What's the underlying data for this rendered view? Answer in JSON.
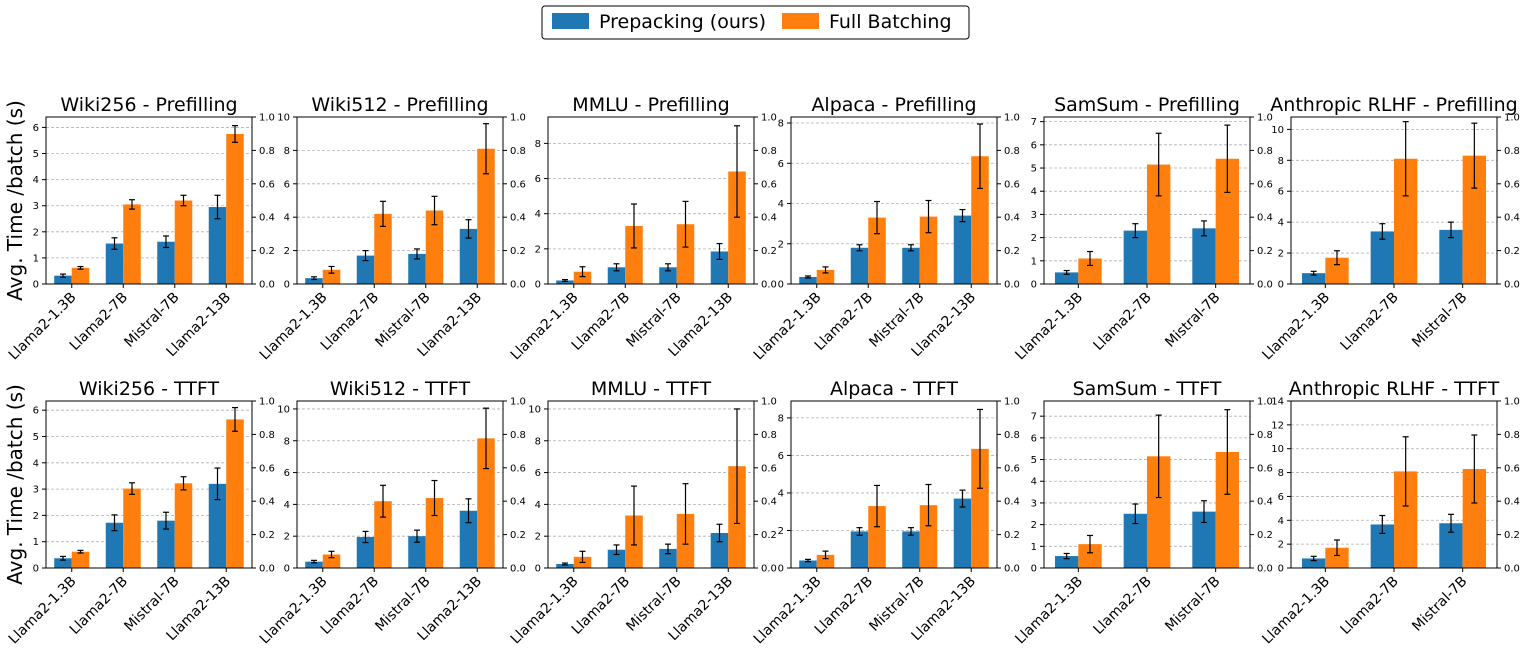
{
  "ylabel": "Avg. Time /batch (s)",
  "legend": {
    "placement": "top-center",
    "entries": [
      {
        "label": "Prepacking (ours)",
        "color": "#1f77b4"
      },
      {
        "label": "Full Batching",
        "color": "#ff7f0e"
      }
    ]
  },
  "colors": {
    "prepacking": "#1f77b4",
    "full_batching": "#ff7f0e",
    "grid": "#b0b0b0",
    "errorbar": "#000000"
  },
  "right_axis": {
    "ylim": [
      0,
      1
    ],
    "ticks": [
      "0.0",
      "0.2",
      "0.4",
      "0.6",
      "0.8",
      "1.0"
    ]
  },
  "chart_data": [
    {
      "type": "bar",
      "title": "Wiki256 - Prefilling",
      "categories": [
        "Llama2-1.3B",
        "Llama2-7B",
        "Mistral-7B",
        "Llama2-13B"
      ],
      "ylim": [
        0,
        6.4
      ],
      "yticks": [
        0,
        1,
        2,
        3,
        4,
        5,
        6
      ],
      "grid": true,
      "series": [
        {
          "name": "Prepacking (ours)",
          "values": [
            0.32,
            1.55,
            1.62,
            2.95
          ],
          "errors": [
            0.06,
            0.22,
            0.22,
            0.45
          ]
        },
        {
          "name": "Full Batching",
          "values": [
            0.62,
            3.05,
            3.2,
            5.75
          ],
          "errors": [
            0.05,
            0.18,
            0.2,
            0.32
          ]
        }
      ]
    },
    {
      "type": "bar",
      "title": "Wiki512 - Prefilling",
      "categories": [
        "Llama2-1.3B",
        "Llama2-7B",
        "Mistral-7B",
        "Llama2-13B"
      ],
      "ylim": [
        0,
        10
      ],
      "yticks": [
        0,
        2,
        4,
        6,
        8,
        10
      ],
      "grid": true,
      "series": [
        {
          "name": "Prepacking (ours)",
          "values": [
            0.35,
            1.7,
            1.8,
            3.3
          ],
          "errors": [
            0.08,
            0.3,
            0.3,
            0.55
          ]
        },
        {
          "name": "Full Batching",
          "values": [
            0.85,
            4.2,
            4.4,
            8.1
          ],
          "errors": [
            0.2,
            0.75,
            0.85,
            1.5
          ]
        }
      ]
    },
    {
      "type": "bar",
      "title": "MMLU - Prefilling",
      "categories": [
        "Llama2-1.3B",
        "Llama2-7B",
        "Mistral-7B",
        "Llama2-13B"
      ],
      "ylim": [
        0,
        9.5
      ],
      "yticks": [
        0,
        2,
        4,
        6,
        8
      ],
      "grid": true,
      "series": [
        {
          "name": "Prepacking (ours)",
          "values": [
            0.2,
            0.95,
            0.95,
            1.85
          ],
          "errors": [
            0.05,
            0.2,
            0.2,
            0.45
          ]
        },
        {
          "name": "Full Batching",
          "values": [
            0.7,
            3.3,
            3.4,
            6.4
          ],
          "errors": [
            0.28,
            1.25,
            1.3,
            2.6
          ]
        }
      ]
    },
    {
      "type": "bar",
      "title": "Alpaca - Prefilling",
      "categories": [
        "Llama2-1.3B",
        "Llama2-7B",
        "Mistral-7B",
        "Llama2-13B"
      ],
      "ylim": [
        0,
        8.3
      ],
      "yticks": [
        0,
        2,
        4,
        6,
        8
      ],
      "grid": true,
      "series": [
        {
          "name": "Prepacking (ours)",
          "values": [
            0.35,
            1.8,
            1.8,
            3.4
          ],
          "errors": [
            0.05,
            0.15,
            0.15,
            0.3
          ]
        },
        {
          "name": "Full Batching",
          "values": [
            0.7,
            3.3,
            3.35,
            6.35
          ],
          "errors": [
            0.15,
            0.8,
            0.8,
            1.6
          ]
        }
      ]
    },
    {
      "type": "bar",
      "title": "SamSum - Prefilling",
      "categories": [
        "Llama2-1.3B",
        "Llama2-7B",
        "Mistral-7B"
      ],
      "ylim": [
        0,
        7.2
      ],
      "yticks": [
        0,
        1,
        2,
        3,
        4,
        5,
        6,
        7
      ],
      "grid": true,
      "series": [
        {
          "name": "Prepacking (ours)",
          "values": [
            0.5,
            2.3,
            2.4
          ],
          "errors": [
            0.08,
            0.3,
            0.32
          ]
        },
        {
          "name": "Full Batching",
          "values": [
            1.1,
            5.15,
            5.4
          ],
          "errors": [
            0.3,
            1.35,
            1.45
          ]
        }
      ]
    },
    {
      "type": "bar",
      "title": "Anthropic RLHF - Prefilling",
      "categories": [
        "Llama2-1.3B",
        "Llama2-7B",
        "Mistral-7B"
      ],
      "ylim": [
        0,
        10.8
      ],
      "yticks": [
        0,
        2,
        4,
        6,
        8,
        10
      ],
      "grid": true,
      "series": [
        {
          "name": "Prepacking (ours)",
          "values": [
            0.7,
            3.4,
            3.5
          ],
          "errors": [
            0.12,
            0.5,
            0.5
          ]
        },
        {
          "name": "Full Batching",
          "values": [
            1.7,
            8.1,
            8.3
          ],
          "errors": [
            0.45,
            2.4,
            2.1
          ]
        }
      ]
    },
    {
      "type": "bar",
      "title": "Wiki256 - TTFT",
      "categories": [
        "Llama2-1.3B",
        "Llama2-7B",
        "Mistral-7B",
        "Llama2-13B"
      ],
      "ylim": [
        0,
        6.35
      ],
      "yticks": [
        0,
        1,
        2,
        3,
        4,
        5,
        6
      ],
      "grid": true,
      "series": [
        {
          "name": "Prepacking (ours)",
          "values": [
            0.37,
            1.72,
            1.8,
            3.2
          ],
          "errors": [
            0.07,
            0.3,
            0.32,
            0.6
          ]
        },
        {
          "name": "Full Batching",
          "values": [
            0.62,
            3.02,
            3.22,
            5.65
          ],
          "errors": [
            0.05,
            0.22,
            0.25,
            0.45
          ]
        }
      ]
    },
    {
      "type": "bar",
      "title": "Wiki512 - TTFT",
      "categories": [
        "Llama2-1.3B",
        "Llama2-7B",
        "Mistral-7B",
        "Llama2-13B"
      ],
      "ylim": [
        0,
        10.5
      ],
      "yticks": [
        0,
        2,
        4,
        6,
        8,
        10
      ],
      "grid": true,
      "series": [
        {
          "name": "Prepacking (ours)",
          "values": [
            0.4,
            1.95,
            2.0,
            3.6
          ],
          "errors": [
            0.08,
            0.35,
            0.38,
            0.75
          ]
        },
        {
          "name": "Full Batching",
          "values": [
            0.85,
            4.2,
            4.4,
            8.15
          ],
          "errors": [
            0.2,
            1.0,
            1.1,
            1.9
          ]
        }
      ]
    },
    {
      "type": "bar",
      "title": "MMLU - TTFT",
      "categories": [
        "Llama2-1.3B",
        "Llama2-7B",
        "Mistral-7B",
        "Llama2-13B"
      ],
      "ylim": [
        0,
        10.5
      ],
      "yticks": [
        0,
        2,
        4,
        6,
        8,
        10
      ],
      "grid": true,
      "series": [
        {
          "name": "Prepacking (ours)",
          "values": [
            0.25,
            1.15,
            1.2,
            2.2
          ],
          "errors": [
            0.06,
            0.3,
            0.3,
            0.55
          ]
        },
        {
          "name": "Full Batching",
          "values": [
            0.7,
            3.3,
            3.4,
            6.4
          ],
          "errors": [
            0.35,
            1.85,
            1.9,
            3.6
          ]
        }
      ]
    },
    {
      "type": "bar",
      "title": "Alpaca - TTFT",
      "categories": [
        "Llama2-1.3B",
        "Llama2-7B",
        "Mistral-7B",
        "Llama2-13B"
      ],
      "ylim": [
        0,
        8.9
      ],
      "yticks": [
        0,
        2,
        4,
        6,
        8
      ],
      "grid": true,
      "series": [
        {
          "name": "Prepacking (ours)",
          "values": [
            0.4,
            1.95,
            1.95,
            3.7
          ],
          "errors": [
            0.06,
            0.2,
            0.2,
            0.45
          ]
        },
        {
          "name": "Full Batching",
          "values": [
            0.7,
            3.3,
            3.35,
            6.35
          ],
          "errors": [
            0.2,
            1.1,
            1.1,
            2.1
          ]
        }
      ]
    },
    {
      "type": "bar",
      "title": "SamSum - TTFT",
      "categories": [
        "Llama2-1.3B",
        "Llama2-7B",
        "Mistral-7B"
      ],
      "ylim": [
        0,
        7.7
      ],
      "yticks": [
        0,
        1,
        2,
        3,
        4,
        5,
        6,
        7
      ],
      "grid": true,
      "series": [
        {
          "name": "Prepacking (ours)",
          "values": [
            0.55,
            2.5,
            2.6
          ],
          "errors": [
            0.12,
            0.45,
            0.5
          ]
        },
        {
          "name": "Full Batching",
          "values": [
            1.1,
            5.15,
            5.35
          ],
          "errors": [
            0.4,
            1.9,
            1.95
          ]
        }
      ]
    },
    {
      "type": "bar",
      "title": "Anthropic RLHF - TTFT",
      "categories": [
        "Llama2-1.3B",
        "Llama2-7B",
        "Mistral-7B"
      ],
      "ylim": [
        0,
        14
      ],
      "yticks": [
        0,
        2,
        4,
        6,
        8,
        10,
        12,
        14
      ],
      "grid": true,
      "series": [
        {
          "name": "Prepacking (ours)",
          "values": [
            0.8,
            3.65,
            3.75
          ],
          "errors": [
            0.18,
            0.75,
            0.75
          ]
        },
        {
          "name": "Full Batching",
          "values": [
            1.7,
            8.1,
            8.3
          ],
          "errors": [
            0.65,
            2.9,
            2.85
          ]
        }
      ]
    }
  ]
}
